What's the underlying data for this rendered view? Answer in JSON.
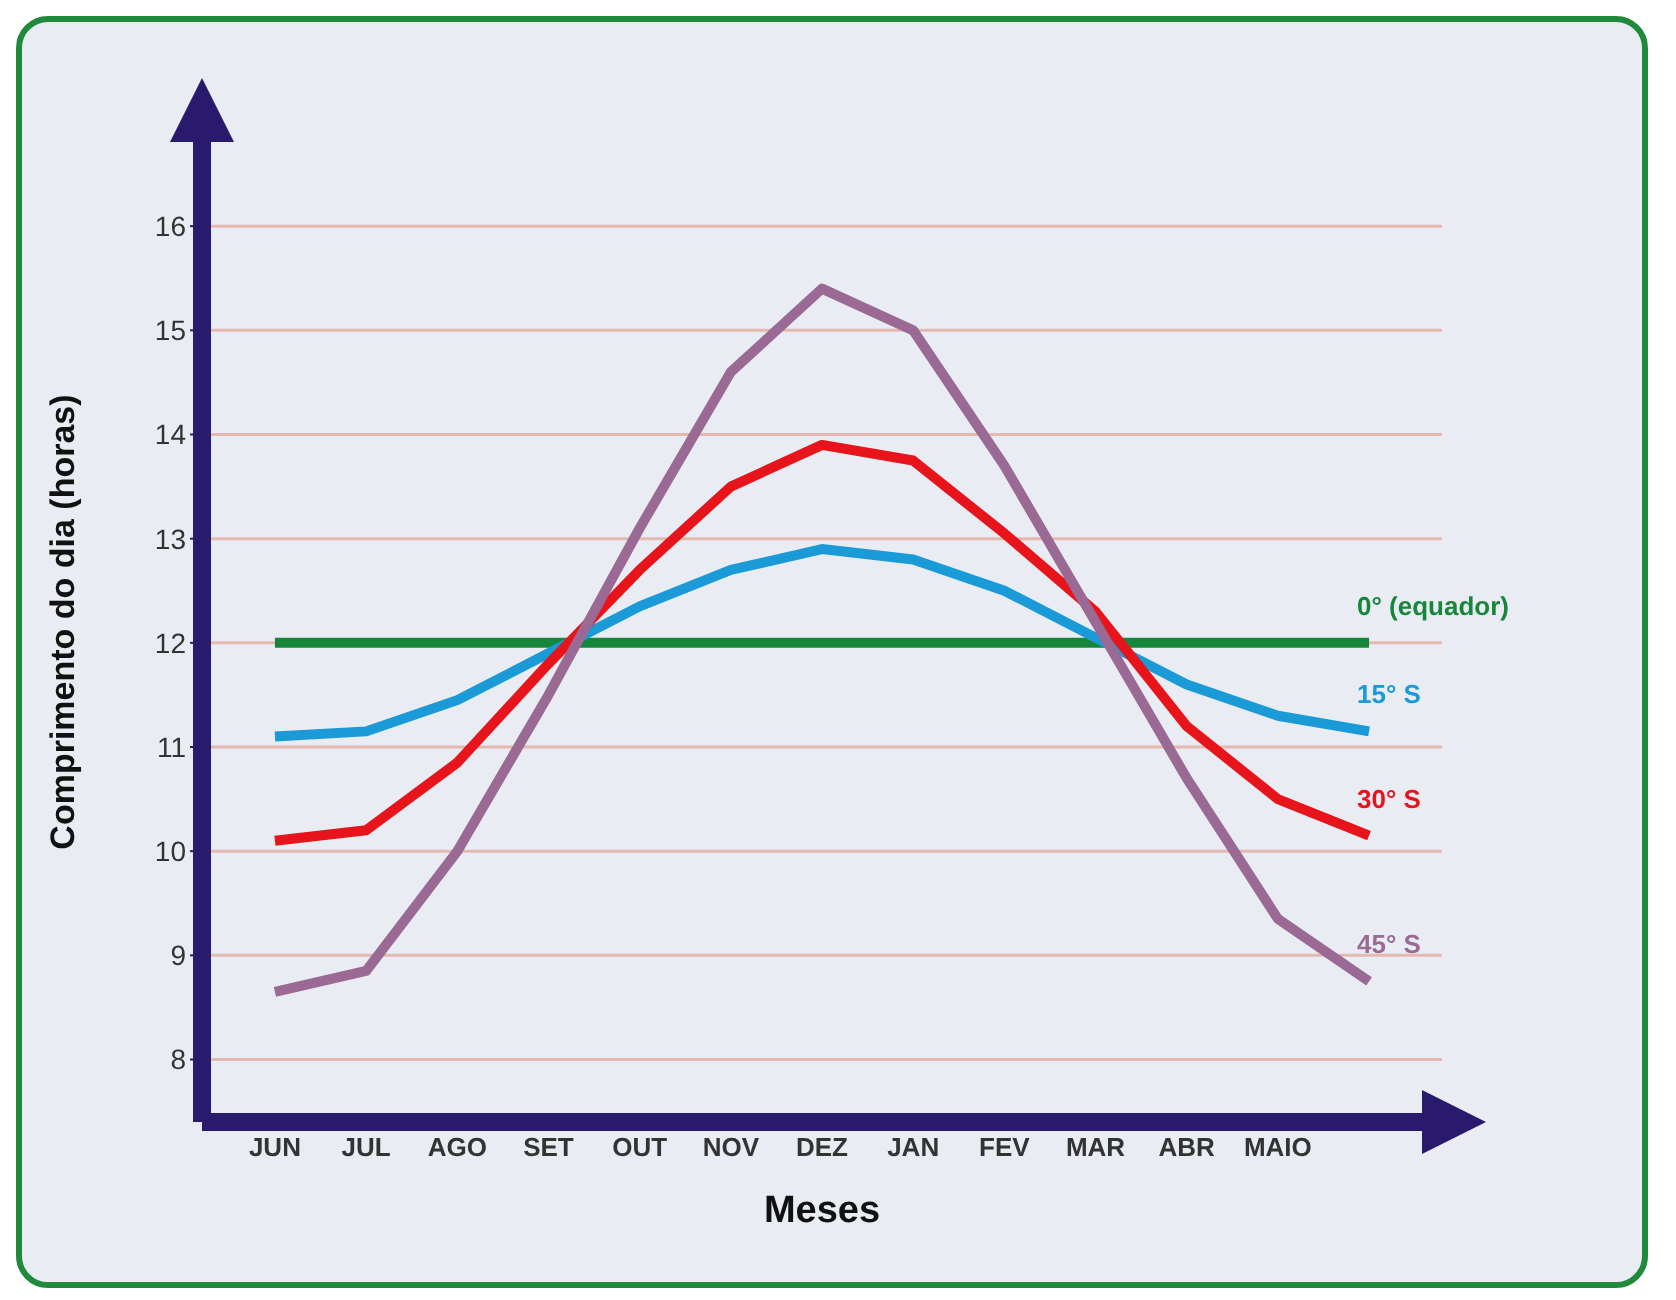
{
  "chart_data": {
    "type": "line",
    "xlabel": "Meses",
    "ylabel": "Comprimento do dia (horas)",
    "categories": [
      "JUN",
      "JUL",
      "AGO",
      "SET",
      "OUT",
      "NOV",
      "DEZ",
      "JAN",
      "FEV",
      "MAR",
      "ABR",
      "MAIO",
      null
    ],
    "series": [
      {
        "name": "0° (equador)",
        "color": "#16873a",
        "values": [
          12,
          12,
          12,
          12,
          12,
          12,
          12,
          12,
          12,
          12,
          12,
          12,
          12
        ]
      },
      {
        "name": "15° S",
        "color": "#1a9ad6",
        "values": [
          11.1,
          11.15,
          11.45,
          11.9,
          12.35,
          12.7,
          12.9,
          12.8,
          12.5,
          12.05,
          11.6,
          11.3,
          11.15
        ]
      },
      {
        "name": "30° S",
        "color": "#e8141c",
        "values": [
          10.1,
          10.2,
          10.85,
          11.8,
          12.7,
          13.5,
          13.9,
          13.75,
          13.05,
          12.3,
          11.2,
          10.5,
          10.15
        ]
      },
      {
        "name": "45° S",
        "color": "#9a6a94",
        "values": [
          8.65,
          8.85,
          10.0,
          11.5,
          13.1,
          14.6,
          15.4,
          15.0,
          13.7,
          12.2,
          10.7,
          9.35,
          8.75
        ]
      }
    ],
    "ylim": [
      7.4,
      17
    ],
    "yticks": [
      8,
      9,
      10,
      11,
      12,
      13,
      14,
      15,
      16
    ],
    "grid": "y",
    "legend": false,
    "marker": "none",
    "line_style": "solid"
  }
}
